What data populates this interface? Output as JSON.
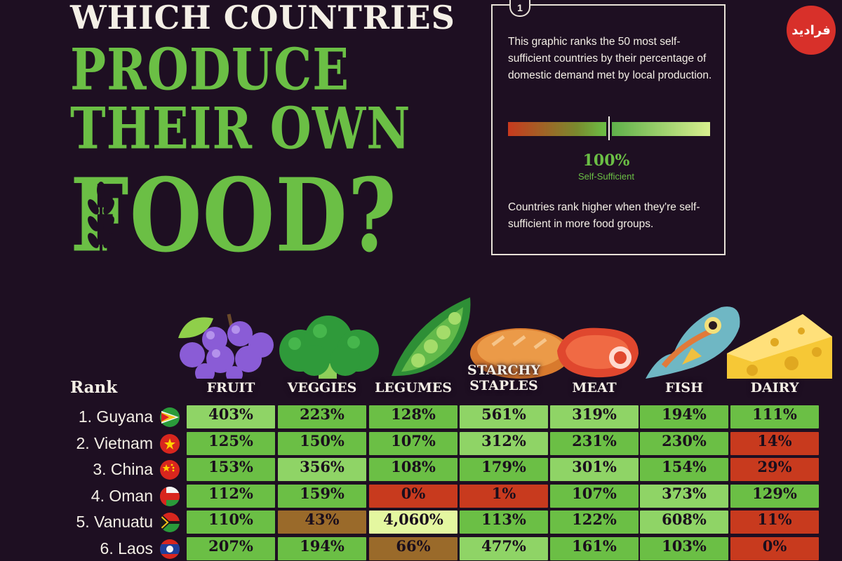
{
  "title": {
    "line1": "WHICH COUNTRIES",
    "line2": "PRODUCE",
    "line3": "THEIR OWN",
    "line4": "FOOD?"
  },
  "info": {
    "number": "1",
    "text1": "This graphic ranks the 50 most self-sufficient countries by their percentage of domestic demand met by local production.",
    "scale_value": "100%",
    "scale_caption": "Self-Sufficient",
    "text2": "Countries rank higher when they're self-sufficient in more food groups."
  },
  "logo": {
    "text": "فرادید"
  },
  "colors": {
    "background": "#1e0f22",
    "title_green": "#6bbf45",
    "self_sufficient": "#6bbf45",
    "high_green": "#8fd466",
    "very_high": "#e4f7a0",
    "below": "#c83a1e",
    "mid_below": "#9a6a2a"
  },
  "chart_data": {
    "type": "table",
    "rank_header": "Rank",
    "columns": [
      {
        "key": "fruit",
        "label": "FRUIT",
        "icon": "grapes-icon"
      },
      {
        "key": "veggies",
        "label": "VEGGIES",
        "icon": "broccoli-icon"
      },
      {
        "key": "legumes",
        "label": "LEGUMES",
        "icon": "peapod-icon"
      },
      {
        "key": "starchy",
        "label": "STARCHY STAPLES",
        "icon": "bread-icon"
      },
      {
        "key": "meat",
        "label": "MEAT",
        "icon": "steak-icon"
      },
      {
        "key": "fish",
        "label": "FISH",
        "icon": "fish-icon"
      },
      {
        "key": "dairy",
        "label": "DAIRY",
        "icon": "cheese-icon"
      }
    ],
    "rows": [
      {
        "label": "1. Guyana",
        "flag": "guyana-flag-icon",
        "values": [
          403,
          223,
          128,
          561,
          319,
          194,
          111
        ],
        "display": [
          "403%",
          "223%",
          "128%",
          "561%",
          "319%",
          "194%",
          "111%"
        ]
      },
      {
        "label": "2. Vietnam",
        "flag": "vietnam-flag-icon",
        "values": [
          125,
          150,
          107,
          312,
          231,
          230,
          14
        ],
        "display": [
          "125%",
          "150%",
          "107%",
          "312%",
          "231%",
          "230%",
          "14%"
        ]
      },
      {
        "label": "3. China",
        "flag": "china-flag-icon",
        "values": [
          153,
          356,
          108,
          179,
          301,
          154,
          29
        ],
        "display": [
          "153%",
          "356%",
          "108%",
          "179%",
          "301%",
          "154%",
          "29%"
        ]
      },
      {
        "label": "4. Oman",
        "flag": "oman-flag-icon",
        "values": [
          112,
          159,
          0,
          1,
          107,
          373,
          129
        ],
        "display": [
          "112%",
          "159%",
          "0%",
          "1%",
          "107%",
          "373%",
          "129%"
        ]
      },
      {
        "label": "5. Vanuatu",
        "flag": "vanuatu-flag-icon",
        "values": [
          110,
          43,
          4060,
          113,
          122,
          608,
          11
        ],
        "display": [
          "110%",
          "43%",
          "4,060%",
          "113%",
          "122%",
          "608%",
          "11%"
        ]
      },
      {
        "label": "6. Laos",
        "flag": "laos-flag-icon",
        "values": [
          207,
          194,
          66,
          477,
          161,
          103,
          0
        ],
        "display": [
          "207%",
          "194%",
          "66%",
          "477%",
          "161%",
          "103%",
          "0%"
        ]
      }
    ]
  }
}
